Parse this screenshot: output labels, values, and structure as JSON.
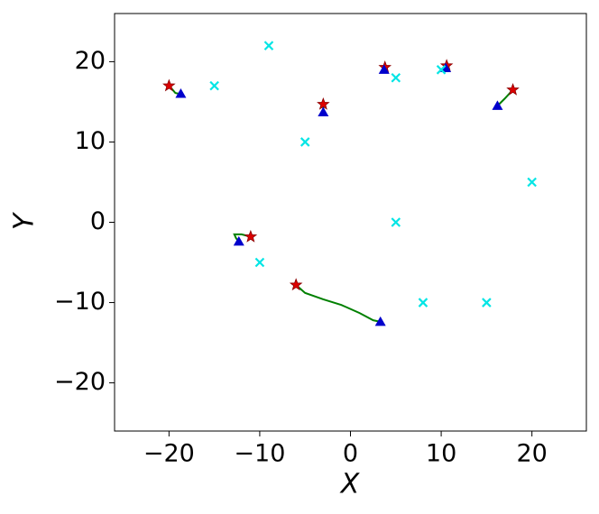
{
  "chart_data": {
    "type": "scatter",
    "xlabel": "X",
    "ylabel": "Y",
    "xlim": [
      -26,
      26
    ],
    "ylim": [
      -26,
      26
    ],
    "xticks": [
      {
        "value": -20,
        "label": "−20"
      },
      {
        "value": -10,
        "label": "−10"
      },
      0,
      10,
      20
    ],
    "yticks": [
      {
        "value": -20,
        "label": "−20"
      },
      {
        "value": -10,
        "label": "−10"
      },
      0,
      10,
      20
    ],
    "series": [
      {
        "marker": "line",
        "color": "#008000",
        "x": [
          -20,
          -19.6,
          -19.3,
          -18.9,
          -18.7
        ],
        "y": [
          17,
          16.5,
          16.1,
          16.0,
          16.0
        ]
      },
      {
        "marker": "line",
        "color": "#008000",
        "x": [
          -3,
          -3
        ],
        "y": [
          14.7,
          13.7
        ]
      },
      {
        "marker": "line",
        "color": "#008000",
        "x": [
          3.8,
          3.7
        ],
        "y": [
          19.3,
          19
        ]
      },
      {
        "marker": "line",
        "color": "#008000",
        "x": [
          10.6,
          10.5
        ],
        "y": [
          19.5,
          19.2
        ]
      },
      {
        "marker": "line",
        "color": "#008000",
        "x": [
          17.9,
          17,
          16.2
        ],
        "y": [
          16.5,
          15.4,
          14.5
        ]
      },
      {
        "marker": "line",
        "color": "#008000",
        "x": [
          -11,
          -12,
          -12.8,
          -12.6,
          -12.3
        ],
        "y": [
          -1.8,
          -1.5,
          -1.5,
          -2.0,
          -2.4
        ]
      },
      {
        "marker": "line",
        "color": "#008000",
        "x": [
          -6,
          -5,
          -3,
          -1,
          1,
          2.5,
          3.3
        ],
        "y": [
          -7.8,
          -8.8,
          -9.6,
          -10.3,
          -11.3,
          -12.2,
          -12.4
        ]
      },
      {
        "marker": "star",
        "color": "#dd0000",
        "x": [
          -20,
          -3,
          3.8,
          10.6,
          17.9,
          -11,
          -6
        ],
        "y": [
          17,
          14.7,
          19.3,
          19.5,
          16.5,
          -1.8,
          -7.8
        ]
      },
      {
        "marker": "triangle",
        "color": "#0000cc",
        "x": [
          -18.7,
          -3,
          3.7,
          10.5,
          16.2,
          -12.3,
          3.3
        ],
        "y": [
          16,
          13.7,
          19,
          19.2,
          14.5,
          -2.4,
          -12.4
        ]
      },
      {
        "marker": "x",
        "color": "#00e5e5",
        "x": [
          -9,
          -15,
          -5,
          5,
          10,
          20,
          5,
          -10,
          8,
          15
        ],
        "y": [
          22,
          17,
          10,
          18,
          19,
          5,
          0,
          -5,
          -10,
          -10
        ]
      }
    ]
  }
}
